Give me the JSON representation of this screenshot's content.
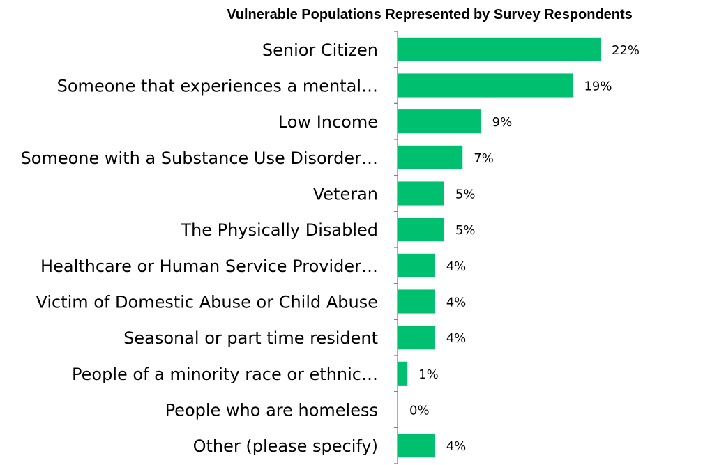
{
  "chart_data": {
    "type": "bar",
    "orientation": "horizontal",
    "title": "Vulnerable Populations Represented by Survey Respondents",
    "xlabel": "",
    "ylabel": "",
    "categories": [
      "Senior Citizen",
      "Someone that experiences a mental…",
      "Low Income",
      "Someone with a Substance Use Disorder…",
      "Veteran",
      "The Physically Disabled",
      "Healthcare or Human Service Provider…",
      "Victim of Domestic Abuse or Child Abuse",
      "Seasonal or part time resident",
      "People of a minority race or ethnic…",
      "People who are homeless",
      "Other (please specify)"
    ],
    "values": [
      22,
      19,
      9,
      7,
      5,
      5,
      4,
      4,
      4,
      1,
      0,
      4
    ],
    "value_labels": [
      "22%",
      "19%",
      "9%",
      "7%",
      "5%",
      "5%",
      "4%",
      "4%",
      "4%",
      "1%",
      "0%",
      "4%"
    ],
    "unit": "%",
    "xlim": [
      0,
      24
    ],
    "grid": false,
    "legend": "none",
    "bar_color": "#00BF6F"
  }
}
